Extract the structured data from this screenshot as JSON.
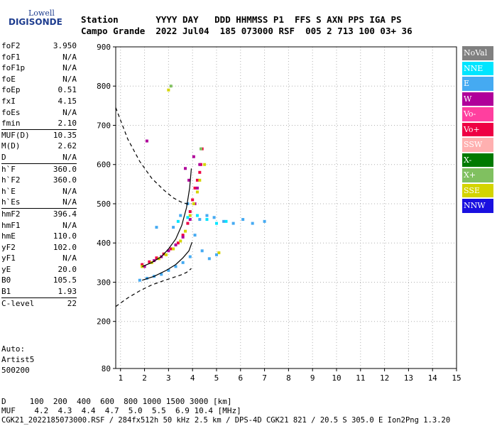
{
  "logo": {
    "line1": "Lowell",
    "line2": "DIGISONDE"
  },
  "header": {
    "row1": "Station       YYYY DAY   DDD HHMMSS P1  FFS S AXN PPS IGA PS",
    "row2": "Campo Grande  2022 Jul04  185 073000 RSF  005 2 713 100 03+ 36"
  },
  "params": [
    {
      "label": "foF2",
      "value": "3.950",
      "sep": false
    },
    {
      "label": "foF1",
      "value": "N/A",
      "sep": false
    },
    {
      "label": "foF1p",
      "value": "N/A",
      "sep": false
    },
    {
      "label": "foE",
      "value": "N/A",
      "sep": false
    },
    {
      "label": "foEp",
      "value": "0.51",
      "sep": false
    },
    {
      "label": "fxI",
      "value": "4.15",
      "sep": false
    },
    {
      "label": "foEs",
      "value": "N/A",
      "sep": false
    },
    {
      "label": "fmin",
      "value": "2.10",
      "sep": false
    },
    {
      "label": "MUF(D)",
      "value": "10.35",
      "sep": true
    },
    {
      "label": "M(D)",
      "value": "2.62",
      "sep": false
    },
    {
      "label": "D",
      "value": "N/A",
      "sep": false
    },
    {
      "label": "h`F",
      "value": "360.0",
      "sep": true
    },
    {
      "label": "h`F2",
      "value": "360.0",
      "sep": false
    },
    {
      "label": "h`E",
      "value": "N/A",
      "sep": false
    },
    {
      "label": "h`Es",
      "value": "N/A",
      "sep": false
    },
    {
      "label": "hmF2",
      "value": "396.4",
      "sep": true
    },
    {
      "label": "hmF1",
      "value": "N/A",
      "sep": false
    },
    {
      "label": "hmE",
      "value": "110.0",
      "sep": false
    },
    {
      "label": "yF2",
      "value": "102.0",
      "sep": false
    },
    {
      "label": "yF1",
      "value": "N/A",
      "sep": false
    },
    {
      "label": "yE",
      "value": "20.0",
      "sep": false
    },
    {
      "label": "B0",
      "value": "105.5",
      "sep": false
    },
    {
      "label": "B1",
      "value": "1.93",
      "sep": false
    },
    {
      "label": "C-level",
      "value": "22",
      "sep": true
    }
  ],
  "auto": {
    "line1": "Auto:",
    "line2": "Artist5",
    "line3": "500200"
  },
  "footer": {
    "d_row": "D     100  200  400  600  800 1000 1500 3000 [km]",
    "muf_row": "MUF    4.2  4.3  4.4  4.7  5.0  5.5  6.9 10.4 [MHz]",
    "info": "CGK21_2022185073000.RSF / 284fx512h 50 kHz 2.5 km / DPS-4D CGK21 821 / 20.5 S 305.0 E Ion2Png 1.3.20"
  },
  "legend": [
    {
      "label": "NoVal",
      "color": "#808080"
    },
    {
      "label": "NNE",
      "color": "#00e5ff"
    },
    {
      "label": "E",
      "color": "#45aaf2"
    },
    {
      "label": "W",
      "color": "#b0009a"
    },
    {
      "label": "Vo-",
      "color": "#ff3f9f"
    },
    {
      "label": "Vo+",
      "color": "#ee0044"
    },
    {
      "label": "SSW",
      "color": "#ffb0b0"
    },
    {
      "label": "X-",
      "color": "#007a00"
    },
    {
      "label": "X+",
      "color": "#80c060"
    },
    {
      "label": "SSE",
      "color": "#d4d400"
    },
    {
      "label": "NNW",
      "color": "#1a10e0"
    }
  ],
  "chart_data": {
    "type": "scatter",
    "xlabel": "",
    "ylabel": "",
    "xlim": [
      0.8,
      15
    ],
    "ylim": [
      80,
      900
    ],
    "x_ticks": [
      1,
      2,
      3,
      4,
      5,
      6,
      7,
      8,
      9,
      10,
      11,
      12,
      13,
      14,
      15
    ],
    "y_ticks": [
      80,
      200,
      300,
      400,
      500,
      600,
      700,
      800,
      900
    ],
    "grid": "dotted",
    "series": [
      {
        "name": "Vo+",
        "color": "#ee0044",
        "x": [
          1.9,
          2.2,
          2.5,
          2.8,
          3.1,
          3.4,
          3.6,
          3.8,
          3.9,
          4.0,
          4.1,
          4.2,
          4.3,
          4.35,
          4.4
        ],
        "y": [
          345,
          352,
          362,
          372,
          385,
          400,
          420,
          450,
          480,
          510,
          540,
          560,
          580,
          600,
          640
        ]
      },
      {
        "name": "W",
        "color": "#b0009a",
        "x": [
          2.0,
          2.4,
          2.7,
          3.0,
          3.3,
          3.6,
          3.9,
          4.1,
          4.2,
          4.3,
          2.1,
          3.7,
          3.85,
          4.05
        ],
        "y": [
          340,
          355,
          365,
          380,
          395,
          415,
          460,
          500,
          540,
          600,
          660,
          590,
          560,
          620
        ]
      },
      {
        "name": "SSE",
        "color": "#d4d400",
        "x": [
          1.9,
          2.3,
          2.6,
          2.9,
          3.2,
          3.5,
          3.7,
          3.9,
          4.05,
          4.2,
          4.3,
          4.5,
          3.0,
          5.1
        ],
        "y": [
          340,
          350,
          360,
          370,
          385,
          405,
          430,
          470,
          500,
          530,
          560,
          600,
          790,
          375
        ]
      },
      {
        "name": "E",
        "color": "#45aaf2",
        "x": [
          1.8,
          2.1,
          2.4,
          2.7,
          3.0,
          3.3,
          3.6,
          3.9,
          4.1,
          4.3,
          4.6,
          4.9,
          5.3,
          5.7,
          6.1,
          6.5,
          7.0,
          3.2,
          3.5,
          4.4,
          4.7,
          5.0,
          2.5,
          3.8
        ],
        "y": [
          305,
          310,
          315,
          320,
          330,
          340,
          350,
          365,
          420,
          460,
          470,
          465,
          455,
          450,
          460,
          450,
          455,
          440,
          470,
          380,
          360,
          370,
          440,
          500
        ]
      },
      {
        "name": "NNE",
        "color": "#00e5ff",
        "x": [
          3.4,
          3.8,
          4.2,
          4.6,
          5.0,
          5.4
        ],
        "y": [
          455,
          465,
          470,
          460,
          450,
          455
        ]
      },
      {
        "name": "X+",
        "color": "#80c060",
        "x": [
          3.1,
          4.35
        ],
        "y": [
          800,
          640
        ]
      }
    ],
    "curves": [
      {
        "style": "solid",
        "x": [
          1.9,
          2.3,
          2.7,
          3.0,
          3.3,
          3.55,
          3.75,
          3.88,
          3.95
        ],
        "y": [
          340,
          350,
          365,
          385,
          410,
          445,
          490,
          540,
          590
        ]
      },
      {
        "style": "solid",
        "x": [
          1.9,
          2.4,
          2.9,
          3.3,
          3.6,
          3.85,
          3.98
        ],
        "y": [
          305,
          315,
          330,
          345,
          362,
          380,
          402
        ]
      },
      {
        "style": "dashed",
        "x": [
          0.8,
          1.3,
          1.8,
          2.3,
          2.8,
          3.2,
          3.5,
          3.75,
          3.95
        ],
        "y": [
          745,
          665,
          608,
          565,
          535,
          515,
          505,
          500,
          500
        ]
      },
      {
        "style": "dashed",
        "x": [
          0.8,
          1.3,
          1.8,
          2.3,
          2.8,
          3.2,
          3.5,
          3.75,
          3.95
        ],
        "y": [
          238,
          260,
          278,
          293,
          304,
          312,
          318,
          325,
          335
        ]
      }
    ]
  }
}
